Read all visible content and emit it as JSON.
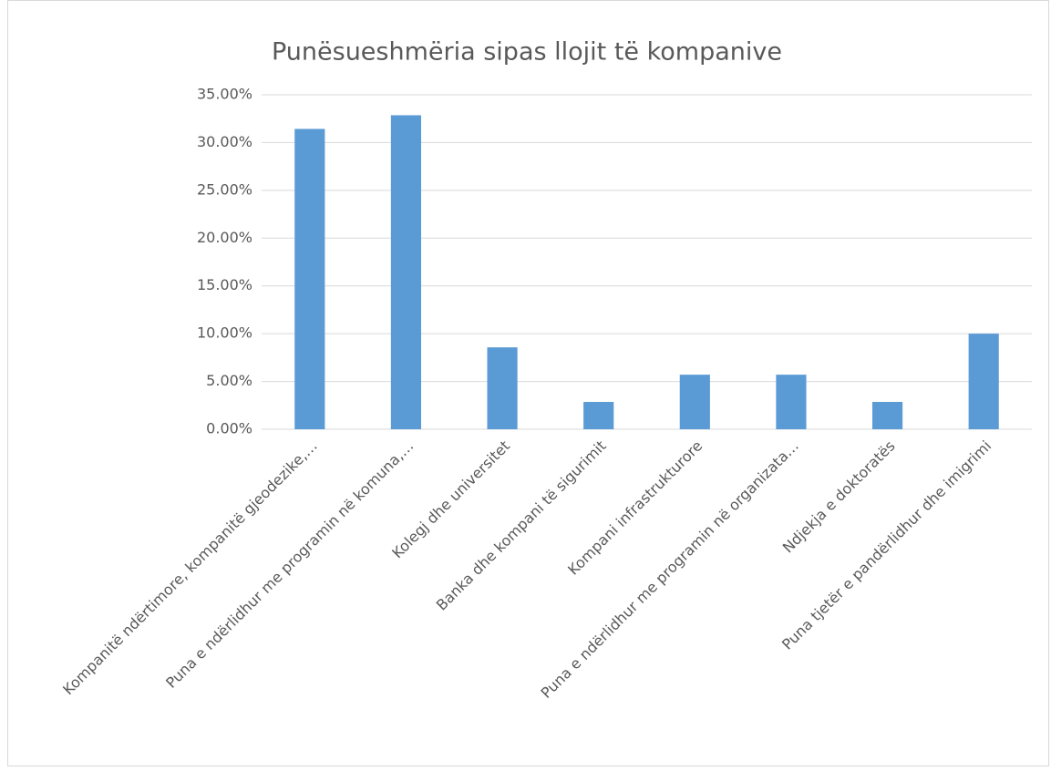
{
  "chart_data": {
    "type": "bar",
    "title": "Punësueshmëria  sipas llojit të kompanive",
    "categories": [
      "Kompanitë ndërtimore, kompanitë gjeodezike,…",
      "Puna e ndërlidhur me programin në komuna,…",
      "Kolegj dhe universitet",
      "Banka dhe kompani të sigurimit",
      "Kompani infrastrukturore",
      "Puna e ndërlidhur me programin në organizata…",
      "Ndjekja e doktoratës",
      "Puna tjetër e pandërlidhur dhe imigrimi"
    ],
    "values": [
      31.43,
      32.86,
      8.57,
      2.86,
      5.71,
      5.71,
      2.86,
      10
    ],
    "color": "#5b9bd5",
    "ylim": [
      0,
      35
    ],
    "yticks": [
      {
        "value": 0,
        "label": "0.00%"
      },
      {
        "value": 5,
        "label": "5.00%"
      },
      {
        "value": 10,
        "label": "10.00%"
      },
      {
        "value": 15,
        "label": "15.00%"
      },
      {
        "value": 20,
        "label": "20.00%"
      },
      {
        "value": 25,
        "label": "25.00%"
      },
      {
        "value": 30,
        "label": "30.00%"
      },
      {
        "value": 35,
        "label": "35.00%"
      }
    ],
    "grid": true
  }
}
